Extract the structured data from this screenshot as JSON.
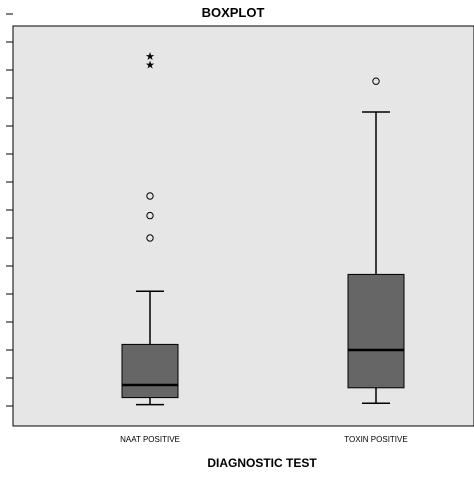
{
  "chart_data": {
    "type": "boxplot",
    "title": "BOXPLOT",
    "xlabel": "DIAGNOSTIC TEST",
    "ylabel": "",
    "y_tick_labels_visible": false,
    "y_tick_count": 15,
    "ylim": [
      0,
      15
    ],
    "grid": false,
    "legend": "none",
    "colors": {
      "plot_background": "#e6e6e6",
      "box_fill": "#666666",
      "line": "#000000"
    },
    "categories": [
      "NAAT POSITIVE",
      "TOXIN POSITIVE"
    ],
    "boxes": [
      {
        "category": "NAAT POSITIVE",
        "whisker_low": 0.05,
        "q1": 0.3,
        "median": 0.75,
        "q3": 2.2,
        "whisker_high": 4.1,
        "outliers": [
          6.0,
          6.8,
          7.5
        ],
        "extremes": [
          12.2,
          12.5
        ]
      },
      {
        "category": "TOXIN POSITIVE",
        "whisker_low": 0.1,
        "q1": 0.65,
        "median": 2.0,
        "q3": 4.7,
        "whisker_high": 10.5,
        "outliers": [
          11.6
        ],
        "extremes": []
      }
    ]
  }
}
